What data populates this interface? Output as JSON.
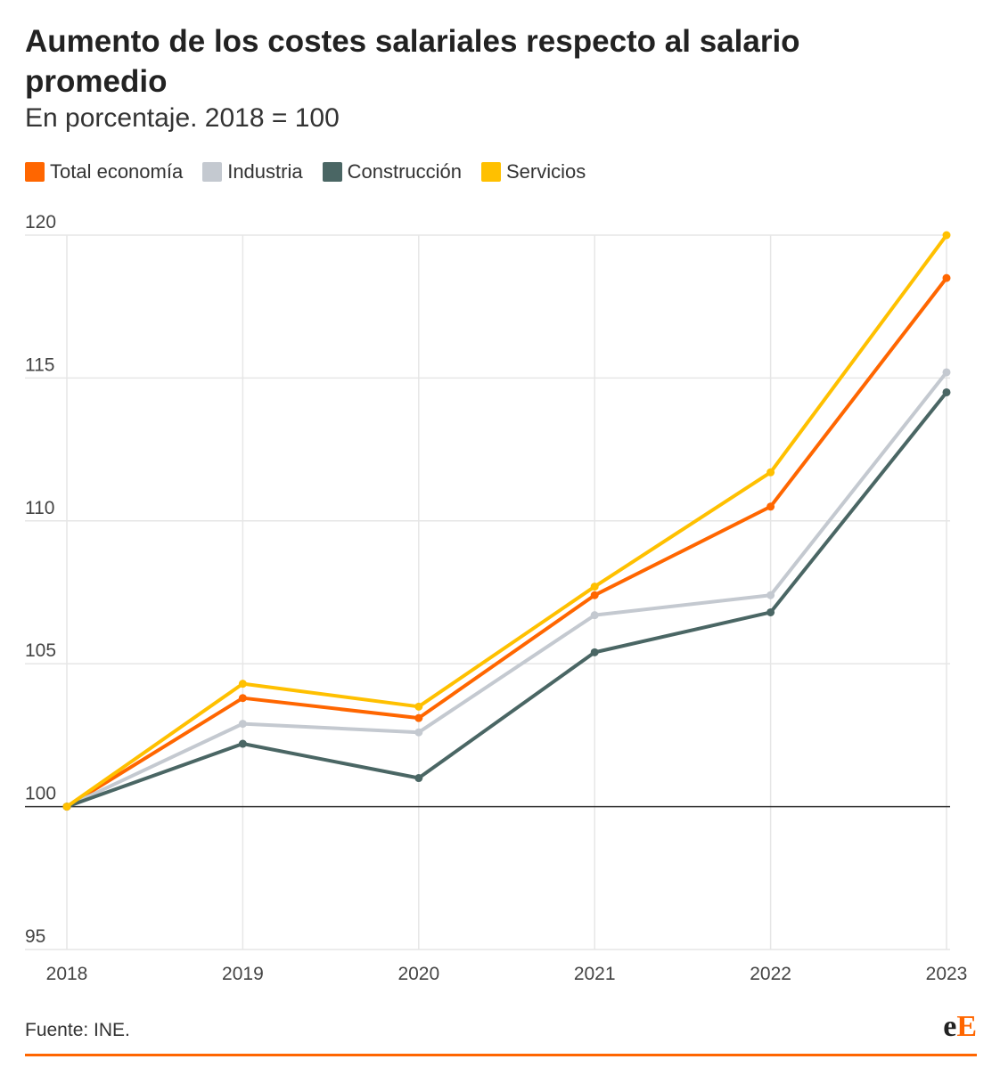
{
  "title": "Aumento de los costes salariales respecto al salario promedio",
  "subtitle": "En porcentaje. 2018 = 100",
  "source": "Fuente: INE.",
  "logo": {
    "text": "eE",
    "e_color": "#222222",
    "E_color": "#ff6600"
  },
  "chart_data": {
    "type": "line",
    "title": "Aumento de los costes salariales respecto al salario promedio",
    "subtitle": "En porcentaje. 2018 = 100",
    "x": [
      "2018",
      "2019",
      "2020",
      "2021",
      "2022",
      "2023"
    ],
    "ylim": [
      95,
      120
    ],
    "yticks": [
      "95",
      "100",
      "105",
      "110",
      "115",
      "120"
    ],
    "baseline": 100,
    "grid": true,
    "legend_placement": "top-left",
    "series": [
      {
        "name": "Total economía",
        "color": "#ff6600",
        "values": [
          100,
          103.8,
          103.1,
          107.4,
          110.5,
          118.5
        ]
      },
      {
        "name": "Industria",
        "color": "#c4c9d0",
        "values": [
          100,
          102.9,
          102.6,
          106.7,
          107.4,
          115.2
        ]
      },
      {
        "name": "Construcción",
        "color": "#4a6664",
        "values": [
          100,
          102.2,
          101.0,
          105.4,
          106.8,
          114.5
        ]
      },
      {
        "name": "Servicios",
        "color": "#ffc000",
        "values": [
          100,
          104.3,
          103.5,
          107.7,
          111.7,
          120.0
        ]
      }
    ]
  }
}
